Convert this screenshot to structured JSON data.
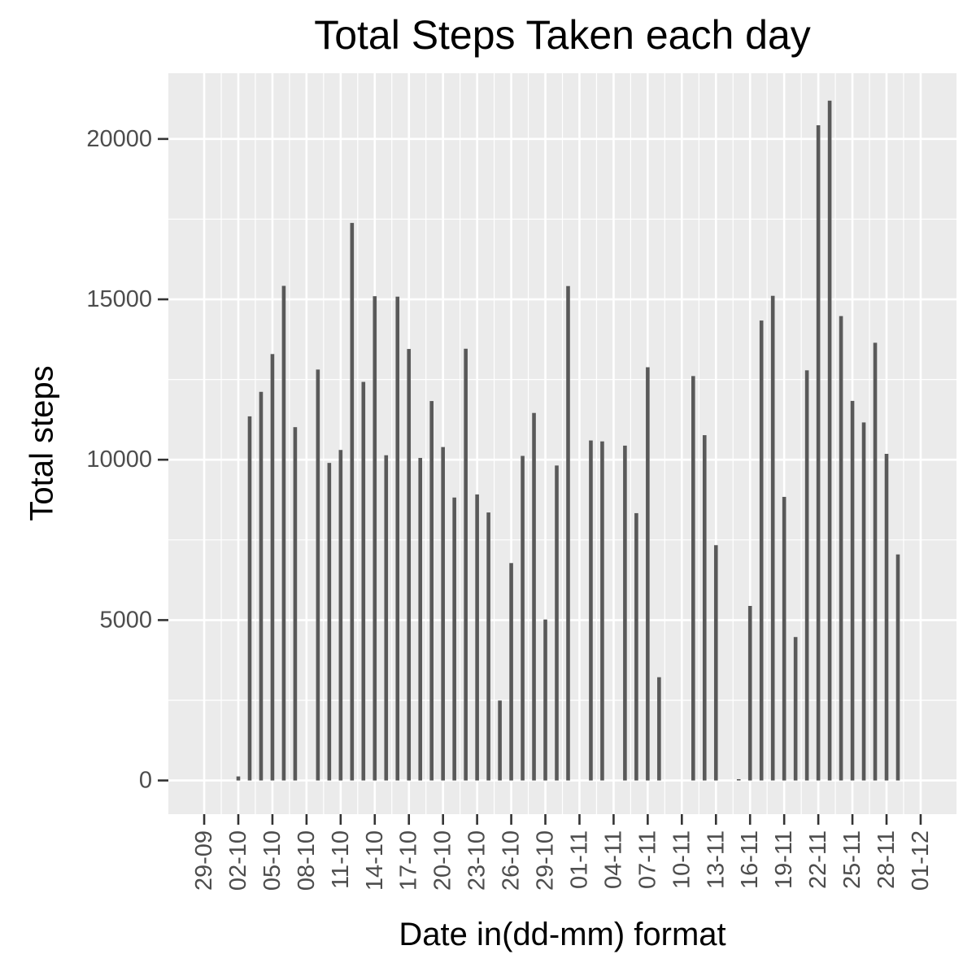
{
  "chart_data": {
    "type": "bar",
    "title": "Total Steps Taken each day",
    "xlabel": "Date in(dd-mm) format",
    "ylabel": "Total steps",
    "x_start": "2012-09-29",
    "x_end": "2012-12-01",
    "ylim": [
      -1050,
      22050
    ],
    "yticks": [
      0,
      5000,
      10000,
      15000,
      20000
    ],
    "xticks": [
      "29-09",
      "02-10",
      "05-10",
      "08-10",
      "11-10",
      "14-10",
      "17-10",
      "20-10",
      "23-10",
      "26-10",
      "29-10",
      "01-11",
      "04-11",
      "07-11",
      "10-11",
      "13-11",
      "16-11",
      "19-11",
      "22-11",
      "25-11",
      "28-11",
      "01-12"
    ],
    "grid": true,
    "legend": "none",
    "colors": {
      "panel": "#ebebeb",
      "grid": "#ffffff",
      "bar": "#595959",
      "tick": "#333333",
      "tick_text": "#4d4d4d"
    },
    "dates": [
      "2012-10-01",
      "2012-10-02",
      "2012-10-03",
      "2012-10-04",
      "2012-10-05",
      "2012-10-06",
      "2012-10-07",
      "2012-10-08",
      "2012-10-09",
      "2012-10-10",
      "2012-10-11",
      "2012-10-12",
      "2012-10-13",
      "2012-10-14",
      "2012-10-15",
      "2012-10-16",
      "2012-10-17",
      "2012-10-18",
      "2012-10-19",
      "2012-10-20",
      "2012-10-21",
      "2012-10-22",
      "2012-10-23",
      "2012-10-24",
      "2012-10-25",
      "2012-10-26",
      "2012-10-27",
      "2012-10-28",
      "2012-10-29",
      "2012-10-30",
      "2012-10-31",
      "2012-11-01",
      "2012-11-02",
      "2012-11-03",
      "2012-11-04",
      "2012-11-05",
      "2012-11-06",
      "2012-11-07",
      "2012-11-08",
      "2012-11-09",
      "2012-11-10",
      "2012-11-11",
      "2012-11-12",
      "2012-11-13",
      "2012-11-14",
      "2012-11-15",
      "2012-11-16",
      "2012-11-17",
      "2012-11-18",
      "2012-11-19",
      "2012-11-20",
      "2012-11-21",
      "2012-11-22",
      "2012-11-23",
      "2012-11-24",
      "2012-11-25",
      "2012-11-26",
      "2012-11-27",
      "2012-11-28",
      "2012-11-29",
      "2012-11-30"
    ],
    "values": [
      0,
      126,
      11352,
      12116,
      13294,
      15420,
      11015,
      0,
      12811,
      9900,
      10304,
      17382,
      12426,
      15098,
      10139,
      15084,
      13452,
      10056,
      11829,
      10395,
      8821,
      13460,
      8918,
      8355,
      2492,
      6778,
      10119,
      11458,
      5018,
      9819,
      15414,
      0,
      10600,
      10571,
      0,
      10439,
      8334,
      12883,
      3219,
      0,
      0,
      12608,
      10765,
      7336,
      0,
      41,
      5441,
      14339,
      15110,
      8841,
      4472,
      12787,
      20427,
      21194,
      14478,
      11834,
      11162,
      13646,
      10183,
      7047,
      0
    ]
  }
}
